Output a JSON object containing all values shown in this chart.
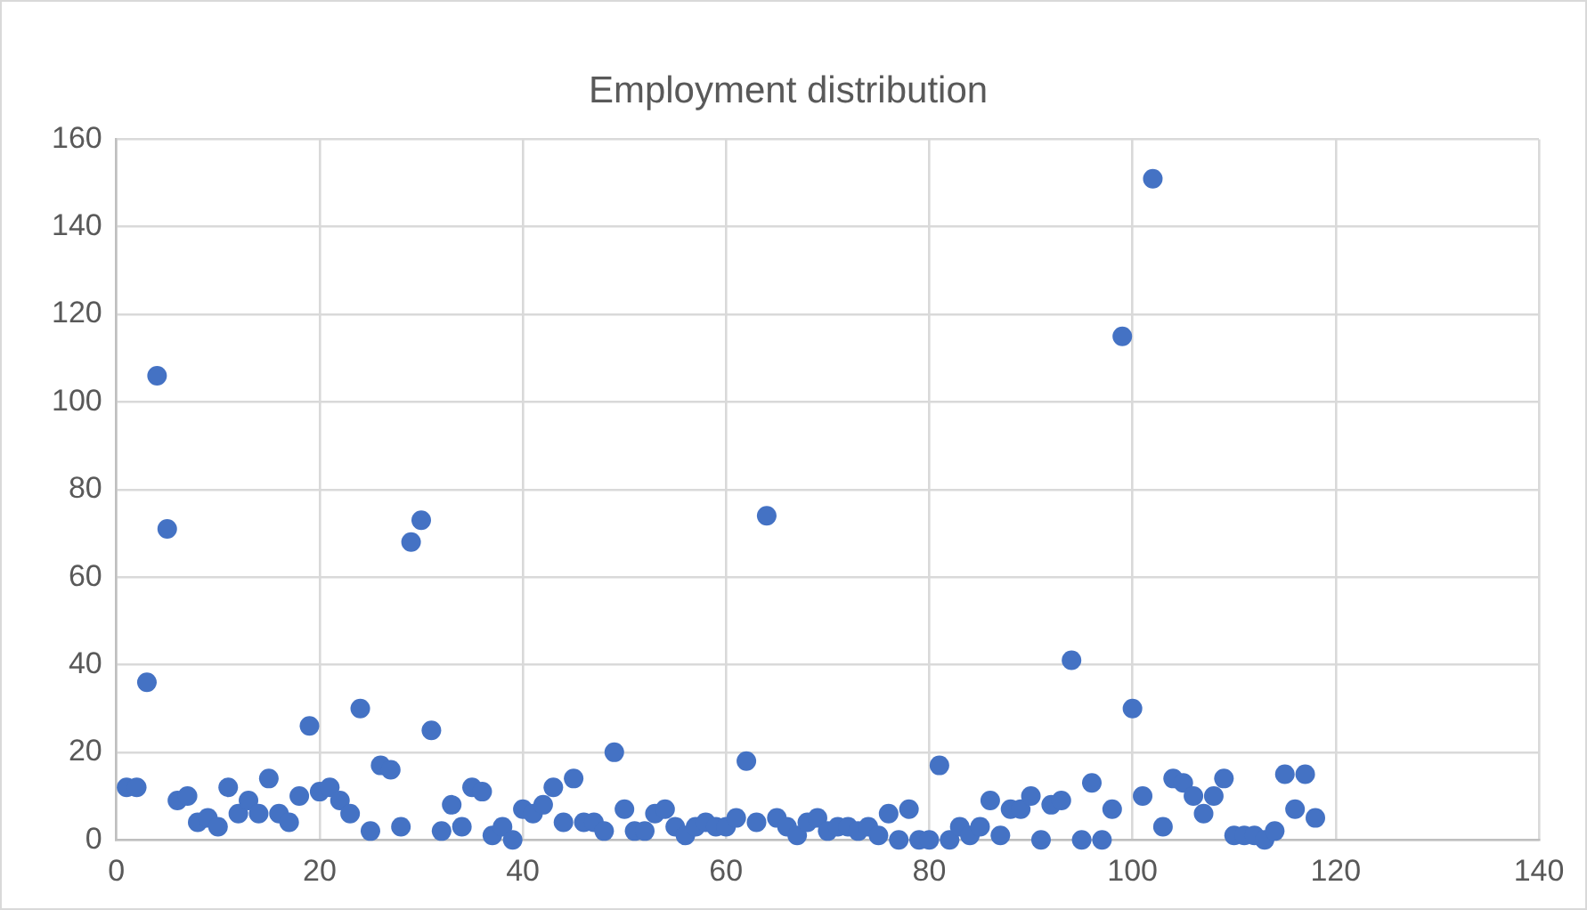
{
  "chart_data": {
    "type": "scatter",
    "title": "Employment distribution",
    "color": "#4472c4",
    "marker": "circle",
    "grid": true,
    "legend": false,
    "xlim": [
      0,
      140
    ],
    "xticks": [
      0,
      20,
      40,
      60,
      80,
      100,
      120,
      140
    ],
    "ylim": [
      0,
      160
    ],
    "yticks": [
      0,
      20,
      40,
      60,
      80,
      100,
      120,
      140,
      160
    ],
    "x": [
      1,
      2,
      3,
      4,
      5,
      6,
      7,
      8,
      9,
      10,
      11,
      12,
      13,
      14,
      15,
      16,
      17,
      18,
      19,
      20,
      21,
      22,
      23,
      24,
      25,
      26,
      27,
      28,
      29,
      30,
      31,
      32,
      33,
      34,
      35,
      36,
      37,
      38,
      39,
      40,
      41,
      42,
      43,
      44,
      45,
      46,
      47,
      48,
      49,
      50,
      51,
      52,
      53,
      54,
      55,
      56,
      57,
      58,
      59,
      60,
      61,
      62,
      63,
      64,
      65,
      66,
      67,
      68,
      69,
      70,
      71,
      72,
      73,
      74,
      75,
      76,
      77,
      78,
      79,
      80,
      81,
      82,
      83,
      84,
      85,
      86,
      87,
      88,
      89,
      90,
      91,
      92,
      93,
      94,
      95,
      96,
      97,
      98,
      99,
      100,
      101,
      102,
      103,
      104,
      105,
      106,
      107,
      108,
      109,
      110,
      111,
      112,
      113,
      114,
      115,
      116,
      117,
      118
    ],
    "values": [
      12,
      12,
      36,
      106,
      71,
      9,
      10,
      4,
      5,
      3,
      12,
      6,
      9,
      6,
      14,
      6,
      4,
      10,
      26,
      11,
      12,
      9,
      6,
      30,
      2,
      17,
      16,
      3,
      68,
      73,
      25,
      2,
      8,
      3,
      12,
      11,
      1,
      3,
      0,
      7,
      6,
      8,
      12,
      4,
      14,
      4,
      4,
      2,
      20,
      7,
      2,
      2,
      6,
      7,
      3,
      1,
      3,
      4,
      3,
      3,
      5,
      18,
      4,
      74,
      5,
      3,
      1,
      4,
      5,
      2,
      3,
      3,
      2,
      3,
      1,
      6,
      0,
      7,
      0,
      0,
      17,
      0,
      3,
      1,
      3,
      9,
      1,
      7,
      7,
      10,
      0,
      8,
      9,
      41,
      0,
      13,
      0,
      7,
      115,
      30,
      10,
      151,
      3,
      14,
      13,
      10,
      6,
      10,
      14,
      1,
      1,
      1,
      0,
      2,
      15,
      7,
      15,
      5
    ]
  }
}
